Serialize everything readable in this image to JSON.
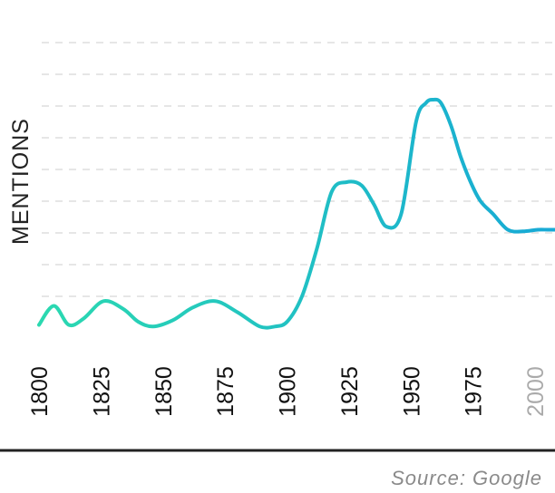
{
  "chart_data": {
    "type": "line",
    "title": "",
    "xlabel": "",
    "ylabel": "MENTIONS",
    "x_ticks": [
      "1800",
      "1825",
      "1850",
      "1875",
      "1900",
      "1925",
      "1950",
      "1975",
      "2000"
    ],
    "x_tick_emphasis": [
      false,
      false,
      false,
      false,
      false,
      false,
      false,
      false,
      true
    ],
    "xlim": [
      1800,
      2008
    ],
    "ylim": [
      0,
      9
    ],
    "grid": true,
    "gridline_count": 9,
    "colors": {
      "line_start": "#2bd9b0",
      "line_end": "#17a9d6",
      "tick_text": "#111111",
      "tick_text_muted": "#aaaaaa",
      "grid": "#dddddd",
      "baseline": "#222222"
    },
    "series": [
      {
        "name": "",
        "x": [
          1800,
          1806,
          1812,
          1818,
          1826,
          1834,
          1840,
          1846,
          1854,
          1862,
          1871,
          1880,
          1889,
          1895,
          1900,
          1906,
          1912,
          1918,
          1924,
          1930,
          1935,
          1940,
          1946,
          1952,
          1956,
          1959,
          1962,
          1966,
          1970,
          1974,
          1978,
          1983,
          1989,
          1995,
          2001,
          2005,
          2008
        ],
        "y": [
          0.1,
          0.7,
          0.1,
          0.3,
          0.85,
          0.6,
          0.2,
          0.05,
          0.25,
          0.65,
          0.85,
          0.5,
          0.05,
          0.05,
          0.2,
          1.0,
          2.5,
          4.3,
          4.6,
          4.5,
          3.9,
          3.2,
          3.6,
          6.5,
          7.1,
          7.2,
          7.1,
          6.4,
          5.4,
          4.6,
          4.0,
          3.6,
          3.1,
          3.05,
          3.1,
          3.1,
          3.1
        ]
      }
    ]
  },
  "source_text": "Source: Google"
}
